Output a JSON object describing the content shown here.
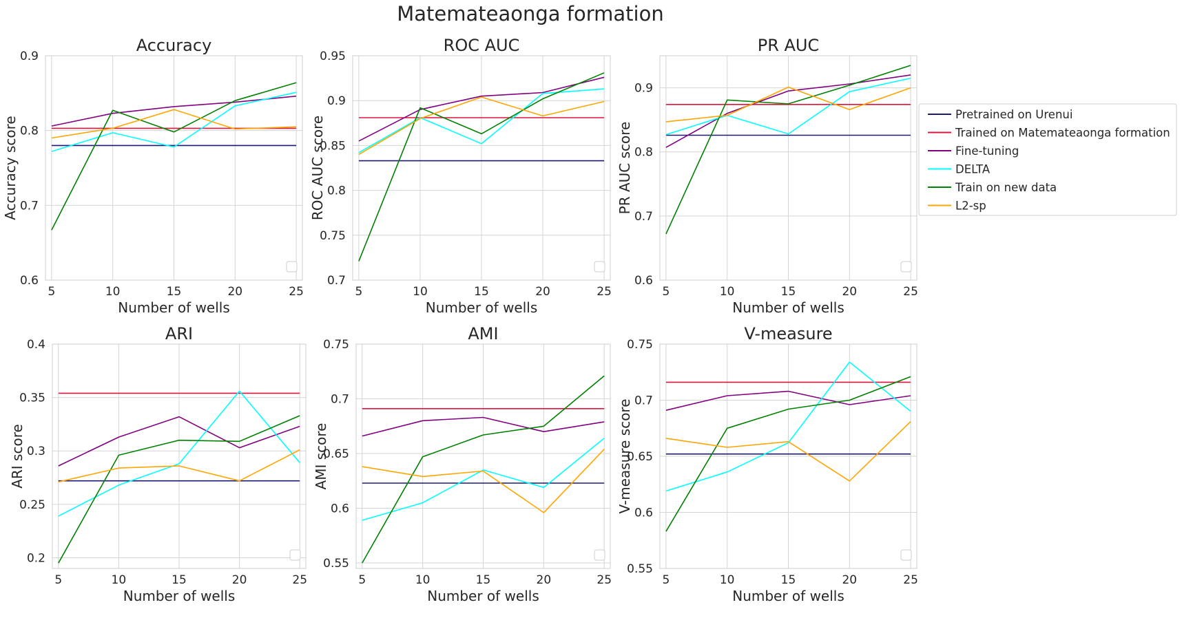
{
  "figure_title": "Matemateaonga formation",
  "legend": [
    {
      "name": "Pretrained on Urenui",
      "color": "#191970"
    },
    {
      "name": "Trained on Matemateaonga formation",
      "color": "#dc143c"
    },
    {
      "name": "Fine-tuning",
      "color": "#800080"
    },
    {
      "name": "DELTA",
      "color": "#00ffff"
    },
    {
      "name": "Train on new data",
      "color": "#008000"
    },
    {
      "name": "L2-sp",
      "color": "#ffa500"
    }
  ],
  "chart_data": [
    {
      "type": "line",
      "title": "Accuracy",
      "xlabel": "Number of wells",
      "ylabel": "Accuracy score",
      "x": [
        5,
        10,
        15,
        20,
        25
      ],
      "ylim": [
        0.6,
        0.9
      ],
      "yticks": [
        0.6,
        0.7,
        0.8,
        0.9
      ],
      "yticklabels": [
        "0.6",
        "0.7",
        "0.8",
        "0.9"
      ],
      "xticklabels": [
        "5",
        "10",
        "15",
        "20",
        "25"
      ],
      "series": [
        {
          "name": "Pretrained on Urenui",
          "values": [
            0.78,
            0.78,
            0.78,
            0.78,
            0.78
          ]
        },
        {
          "name": "Trained on Matemateaonga formation",
          "values": [
            0.803,
            0.803,
            0.803,
            0.803,
            0.803
          ]
        },
        {
          "name": "Fine-tuning",
          "values": [
            0.806,
            0.823,
            0.832,
            0.838,
            0.846
          ]
        },
        {
          "name": "DELTA",
          "values": [
            0.772,
            0.797,
            0.778,
            0.833,
            0.851
          ]
        },
        {
          "name": "Train on new data",
          "values": [
            0.667,
            0.827,
            0.798,
            0.84,
            0.864
          ]
        },
        {
          "name": "L2-sp",
          "values": [
            0.79,
            0.803,
            0.828,
            0.802,
            0.805
          ]
        }
      ]
    },
    {
      "type": "line",
      "title": "ROC AUC",
      "xlabel": "Number of wells",
      "ylabel": "ROC AUC score",
      "x": [
        5,
        10,
        15,
        20,
        25
      ],
      "ylim": [
        0.7,
        0.95
      ],
      "yticks": [
        0.7,
        0.75,
        0.8,
        0.85,
        0.9,
        0.95
      ],
      "yticklabels": [
        "0.7",
        "0.75",
        "0.8",
        "0.85",
        "0.9",
        "0.95"
      ],
      "xticklabels": [
        "5",
        "10",
        "15",
        "20",
        "25"
      ],
      "series": [
        {
          "name": "Pretrained on Urenui",
          "values": [
            0.833,
            0.833,
            0.833,
            0.833,
            0.833
          ]
        },
        {
          "name": "Trained on Matemateaonga formation",
          "values": [
            0.881,
            0.881,
            0.881,
            0.881,
            0.881
          ]
        },
        {
          "name": "Fine-tuning",
          "values": [
            0.855,
            0.89,
            0.905,
            0.909,
            0.926
          ]
        },
        {
          "name": "DELTA",
          "values": [
            0.842,
            0.881,
            0.852,
            0.908,
            0.913
          ]
        },
        {
          "name": "Train on new data",
          "values": [
            0.721,
            0.892,
            0.863,
            0.902,
            0.931
          ]
        },
        {
          "name": "L2-sp",
          "values": [
            0.84,
            0.88,
            0.904,
            0.883,
            0.899
          ]
        }
      ]
    },
    {
      "type": "line",
      "title": "PR AUC",
      "xlabel": "Number of wells",
      "ylabel": "PR AUC score",
      "x": [
        5,
        10,
        15,
        20,
        25
      ],
      "ylim": [
        0.6,
        0.95
      ],
      "yticks": [
        0.6,
        0.7,
        0.8,
        0.9
      ],
      "yticklabels": [
        "0.6",
        "0.7",
        "0.8",
        "0.9"
      ],
      "xticklabels": [
        "5",
        "10",
        "15",
        "20",
        "25"
      ],
      "series": [
        {
          "name": "Pretrained on Urenui",
          "values": [
            0.826,
            0.826,
            0.826,
            0.826,
            0.826
          ]
        },
        {
          "name": "Trained on Matemateaonga formation",
          "values": [
            0.874,
            0.874,
            0.874,
            0.874,
            0.874
          ]
        },
        {
          "name": "Fine-tuning",
          "values": [
            0.807,
            0.86,
            0.895,
            0.906,
            0.92
          ]
        },
        {
          "name": "DELTA",
          "values": [
            0.827,
            0.857,
            0.828,
            0.894,
            0.915
          ]
        },
        {
          "name": "Train on new data",
          "values": [
            0.672,
            0.881,
            0.875,
            0.904,
            0.935
          ]
        },
        {
          "name": "L2-sp",
          "values": [
            0.847,
            0.857,
            0.901,
            0.866,
            0.9
          ]
        }
      ]
    },
    {
      "type": "line",
      "title": "ARI",
      "xlabel": "Number of wells",
      "ylabel": "ARI score",
      "x": [
        5,
        10,
        15,
        20,
        25
      ],
      "ylim": [
        0.19,
        0.4
      ],
      "yticks": [
        0.2,
        0.25,
        0.3,
        0.35,
        0.4
      ],
      "yticklabels": [
        "0.2",
        "0.25",
        "0.3",
        "0.35",
        "0.4"
      ],
      "xticklabels": [
        "5",
        "10",
        "15",
        "20",
        "25"
      ],
      "series": [
        {
          "name": "Pretrained on Urenui",
          "values": [
            0.272,
            0.272,
            0.272,
            0.272,
            0.272
          ]
        },
        {
          "name": "Trained on Matemateaonga formation",
          "values": [
            0.354,
            0.354,
            0.354,
            0.354,
            0.354
          ]
        },
        {
          "name": "Fine-tuning",
          "values": [
            0.286,
            0.313,
            0.332,
            0.303,
            0.323
          ]
        },
        {
          "name": "DELTA",
          "values": [
            0.239,
            0.268,
            0.288,
            0.356,
            0.289
          ]
        },
        {
          "name": "Train on new data",
          "values": [
            0.195,
            0.296,
            0.31,
            0.309,
            0.333
          ]
        },
        {
          "name": "L2-sp",
          "values": [
            0.271,
            0.284,
            0.286,
            0.272,
            0.301
          ]
        }
      ]
    },
    {
      "type": "line",
      "title": "AMI",
      "xlabel": "Number of wells",
      "ylabel": "AMI score",
      "x": [
        5,
        10,
        15,
        20,
        25
      ],
      "ylim": [
        0.545,
        0.75
      ],
      "yticks": [
        0.55,
        0.6,
        0.65,
        0.7,
        0.75
      ],
      "yticklabels": [
        "0.55",
        "0.6",
        "0.65",
        "0.7",
        "0.75"
      ],
      "xticklabels": [
        "5",
        "10",
        "15",
        "20",
        "25"
      ],
      "series": [
        {
          "name": "Pretrained on Urenui",
          "values": [
            0.623,
            0.623,
            0.623,
            0.623,
            0.623
          ]
        },
        {
          "name": "Trained on Matemateaonga formation",
          "values": [
            0.691,
            0.691,
            0.691,
            0.691,
            0.691
          ]
        },
        {
          "name": "Fine-tuning",
          "values": [
            0.666,
            0.68,
            0.683,
            0.67,
            0.679
          ]
        },
        {
          "name": "DELTA",
          "values": [
            0.589,
            0.605,
            0.635,
            0.619,
            0.664
          ]
        },
        {
          "name": "Train on new data",
          "values": [
            0.55,
            0.647,
            0.667,
            0.675,
            0.721
          ]
        },
        {
          "name": "L2-sp",
          "values": [
            0.638,
            0.629,
            0.634,
            0.596,
            0.654
          ]
        }
      ]
    },
    {
      "type": "line",
      "title": "V-measure",
      "xlabel": "Number of wells",
      "ylabel": "V-measure score",
      "x": [
        5,
        10,
        15,
        20,
        25
      ],
      "ylim": [
        0.55,
        0.75
      ],
      "yticks": [
        0.55,
        0.6,
        0.65,
        0.7,
        0.75
      ],
      "yticklabels": [
        "0.55",
        "0.6",
        "0.65",
        "0.7",
        "0.75"
      ],
      "xticklabels": [
        "5",
        "10",
        "15",
        "20",
        "25"
      ],
      "series": [
        {
          "name": "Pretrained on Urenui",
          "values": [
            0.652,
            0.652,
            0.652,
            0.652,
            0.652
          ]
        },
        {
          "name": "Trained on Matemateaonga formation",
          "values": [
            0.716,
            0.716,
            0.716,
            0.716,
            0.716
          ]
        },
        {
          "name": "Fine-tuning",
          "values": [
            0.691,
            0.704,
            0.708,
            0.696,
            0.704
          ]
        },
        {
          "name": "DELTA",
          "values": [
            0.619,
            0.636,
            0.662,
            0.734,
            0.69
          ]
        },
        {
          "name": "Train on new data",
          "values": [
            0.583,
            0.675,
            0.692,
            0.7,
            0.721
          ]
        },
        {
          "name": "L2-sp",
          "values": [
            0.666,
            0.658,
            0.663,
            0.628,
            0.681
          ]
        }
      ]
    }
  ]
}
